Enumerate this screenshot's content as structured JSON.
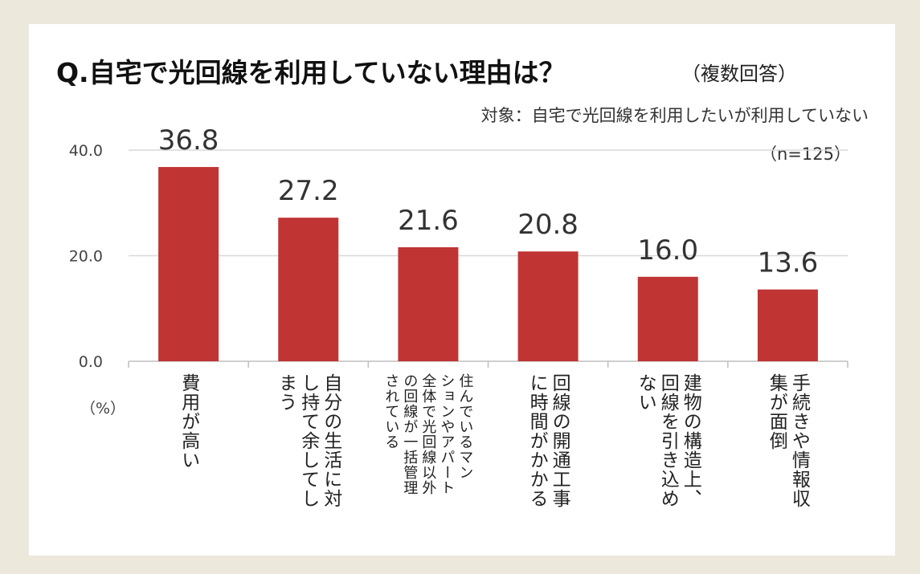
{
  "title": "Q.自宅で光回線を利用していない理由は？",
  "title_note": "（複数回答）",
  "target": "対象：自宅で光回線を利用したいが利用していない",
  "sample": "（n=125）",
  "unit": "（%）",
  "colors": {
    "bar": "#c03434",
    "grid": "#d9d9d9",
    "axis": "#bfbfbf",
    "background": "#ece8dc"
  },
  "chart_data": {
    "type": "bar",
    "categories": [
      "費用が高い",
      "自分の生活に対し持て余してしまう",
      "住んでいるマンションやアパート全体で光回線以外の回線が一括管理されている",
      "回線の開通工事に時間がかかる",
      "建物の構造上、回線を引き込めない",
      "手続きや情報収集が面倒"
    ],
    "category_lines": [
      [
        "費用が高い"
      ],
      [
        "自分の生活に対",
        "し持て余してし",
        "まう"
      ],
      [
        "住んでいるマン",
        "ションやアパート",
        "全体で光回線以外",
        "の回線が一括管理",
        "されている"
      ],
      [
        "回線の開通工事",
        "に時間がかかる"
      ],
      [
        "建物の構造上、",
        "回線を引き込め",
        "ない"
      ],
      [
        "手続きや情報収",
        "集が面倒"
      ]
    ],
    "values": [
      36.8,
      27.2,
      21.6,
      20.8,
      16.0,
      13.6
    ],
    "value_labels": [
      "36.8",
      "27.2",
      "21.6",
      "20.8",
      "16.0",
      "13.6"
    ],
    "yticks": [
      "0.0",
      "20.0",
      "40.0"
    ],
    "ytick_values": [
      0,
      20,
      40
    ],
    "ylim": [
      0,
      40
    ],
    "ylabel": "（%）",
    "grid": true
  }
}
